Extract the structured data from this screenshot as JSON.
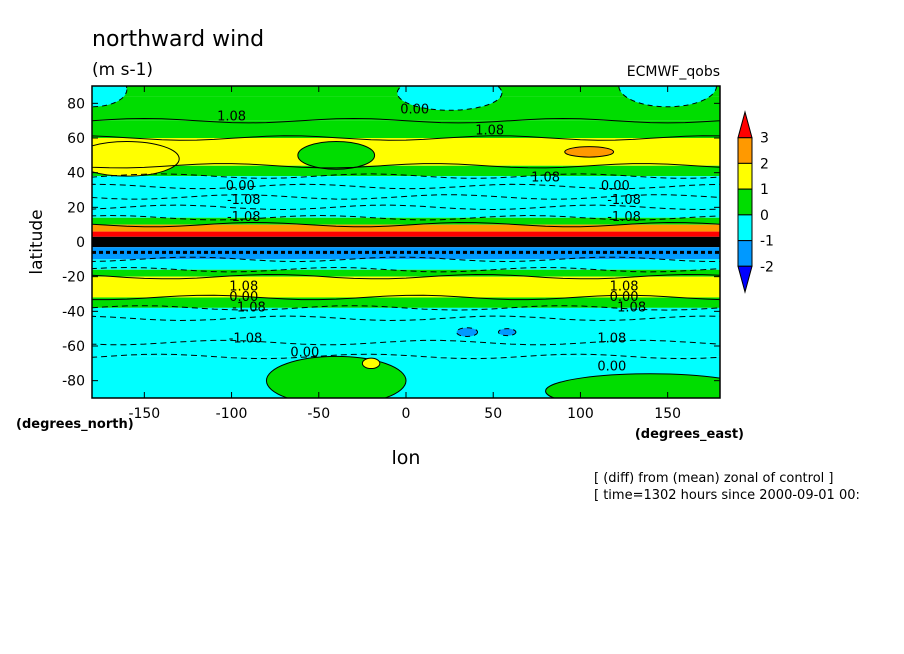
{
  "chart_data": {
    "type": "heatmap",
    "title": "northward wind",
    "subtitle": "(m s-1)",
    "model_label": "ECMWF_qobs",
    "xlabel": "lon",
    "ylabel": "latitude",
    "x_unit": "(degrees_east)",
    "y_unit": "(degrees_north)",
    "xlim": [
      -180,
      180
    ],
    "ylim": [
      -90,
      90
    ],
    "x_ticks": [
      "-150",
      "-100",
      "-50",
      "0",
      "50",
      "100",
      "150"
    ],
    "x_tick_values": [
      -150,
      -100,
      -50,
      0,
      50,
      100,
      150
    ],
    "y_ticks": [
      "-80",
      "-60",
      "-40",
      "-20",
      "0",
      "20",
      "40",
      "60",
      "80"
    ],
    "y_tick_values": [
      -80,
      -60,
      -40,
      -20,
      0,
      20,
      40,
      60,
      80
    ],
    "colorbar": {
      "labels": [
        "3",
        "2",
        "1",
        "0",
        "-1",
        "-2"
      ],
      "label_values": [
        3,
        2,
        1,
        0,
        -1,
        -2
      ],
      "colors": [
        "#ff0000",
        "#ff9900",
        "#ffff00",
        "#00dd00",
        "#00ffff",
        "#0099ff",
        "#0000ff"
      ]
    },
    "bands": [
      {
        "lat_from": 84,
        "lat_to": 90,
        "level": 0
      },
      {
        "lat_from": 70,
        "lat_to": 84,
        "level": 0
      },
      {
        "lat_from": 60,
        "lat_to": 70,
        "level": 0
      },
      {
        "lat_from": 44,
        "lat_to": 60,
        "level": 1
      },
      {
        "lat_from": 38,
        "lat_to": 44,
        "level": 0
      },
      {
        "lat_from": 14,
        "lat_to": 38,
        "level": -1
      },
      {
        "lat_from": 10,
        "lat_to": 14,
        "level": 0
      },
      {
        "lat_from": 6,
        "lat_to": 10,
        "level": 2
      },
      {
        "lat_from": 3,
        "lat_to": 6,
        "level": 3
      },
      {
        "lat_from": -3,
        "lat_to": 3,
        "level": 99
      },
      {
        "lat_from": -10,
        "lat_to": -3,
        "level": -2
      },
      {
        "lat_from": -16,
        "lat_to": -10,
        "level": -1
      },
      {
        "lat_from": -20,
        "lat_to": -16,
        "level": 0
      },
      {
        "lat_from": -32,
        "lat_to": -20,
        "level": 1
      },
      {
        "lat_from": -38,
        "lat_to": -32,
        "level": 0
      },
      {
        "lat_from": -58,
        "lat_to": -38,
        "level": -1
      },
      {
        "lat_from": -66,
        "lat_to": -58,
        "level": -1
      },
      {
        "lat_from": -90,
        "lat_to": -66,
        "level": -1
      }
    ],
    "contour_labels": [
      {
        "text": "0.00",
        "lon": 5,
        "lat": 74
      },
      {
        "text": "1.08",
        "lon": -100,
        "lat": 70
      },
      {
        "text": "1.08",
        "lon": 48,
        "lat": 62
      },
      {
        "text": "1.08",
        "lon": 80,
        "lat": 35
      },
      {
        "text": "0.00",
        "lon": -95,
        "lat": 30
      },
      {
        "text": "-1.08",
        "lon": -93,
        "lat": 22
      },
      {
        "text": "0.00",
        "lon": 120,
        "lat": 30
      },
      {
        "text": "-1.08",
        "lon": 125,
        "lat": 22
      },
      {
        "text": "-1.08",
        "lon": -93,
        "lat": 12
      },
      {
        "text": "-1.08",
        "lon": 125,
        "lat": 12
      },
      {
        "text": "1.08",
        "lon": -93,
        "lat": -28
      },
      {
        "text": "1.08",
        "lon": 125,
        "lat": -28
      },
      {
        "text": "0.00",
        "lon": -93,
        "lat": -34
      },
      {
        "text": "-1.08",
        "lon": -90,
        "lat": -40
      },
      {
        "text": "0.00",
        "lon": 125,
        "lat": -34
      },
      {
        "text": "-1.08",
        "lon": 128,
        "lat": -40
      },
      {
        "text": "-1.08",
        "lon": -92,
        "lat": -58
      },
      {
        "text": "1.08",
        "lon": 118,
        "lat": -58
      },
      {
        "text": "0.00",
        "lon": -58,
        "lat": -66
      },
      {
        "text": "0.00",
        "lon": 118,
        "lat": -74
      }
    ]
  },
  "footer": {
    "line1": "[ (diff) from (mean) zonal of control ]",
    "line2": "[ time=1302 hours since 2000-09-01 00:"
  }
}
